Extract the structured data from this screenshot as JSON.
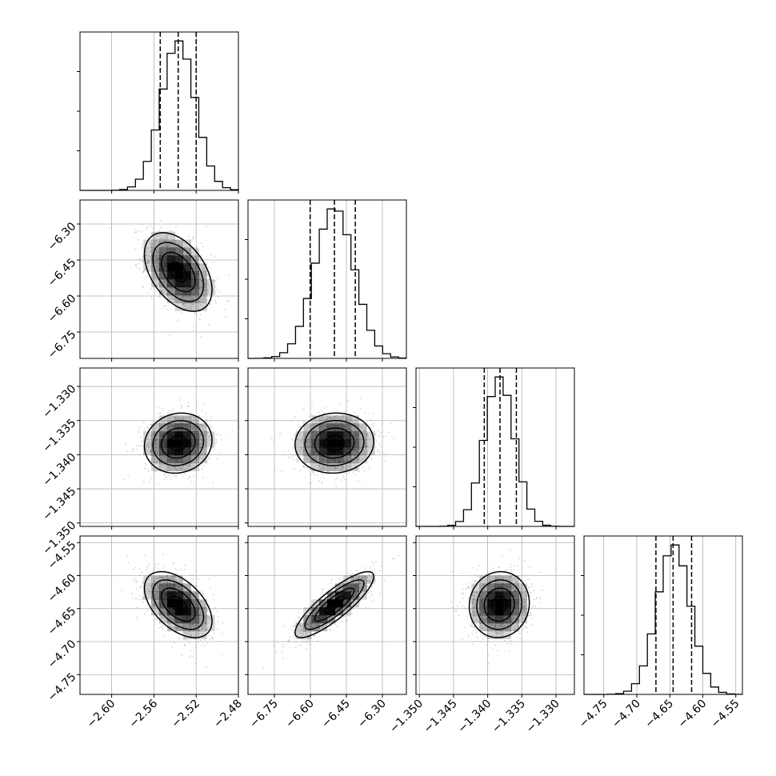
{
  "chart_data": {
    "type": "corner",
    "title": "",
    "colors": {
      "hist": "#000000",
      "contour": "#000000",
      "scatter": "#888888",
      "grid": "#b0b0b0",
      "density": "#000000"
    },
    "grid": true,
    "parameters": [
      {
        "label": "",
        "range": [
          -2.63,
          -2.48
        ],
        "mean": -2.537,
        "sd": 0.016,
        "quantiles": [
          -2.554,
          -2.537,
          -2.52
        ],
        "ticks": [
          -2.6,
          -2.56,
          -2.52,
          -2.48
        ],
        "tick_labels": [
          "−2.60",
          "−2.56",
          "−2.52",
          "−2.48"
        ]
      },
      {
        "label": "",
        "range": [
          -6.86,
          -6.2
        ],
        "mean": -6.5,
        "sd": 0.082,
        "quantiles": [
          -6.601,
          -6.5,
          -6.413
        ],
        "ticks": [
          -6.75,
          -6.6,
          -6.45,
          -6.3
        ],
        "tick_labels": [
          "−6.75",
          "−6.60",
          "−6.45",
          "−6.30"
        ]
      },
      {
        "label": "",
        "range": [
          -1.3505,
          -1.3273
        ],
        "mean": -1.3383,
        "sd": 0.0022,
        "quantiles": [
          -1.3405,
          -1.3382,
          -1.3358
        ],
        "ticks": [
          -1.35,
          -1.345,
          -1.34,
          -1.335,
          -1.33
        ],
        "tick_labels": [
          "−1.350",
          "−1.345",
          "−1.340",
          "−1.335",
          "−1.330"
        ]
      },
      {
        "label": "",
        "range": [
          -4.78,
          -4.54
        ],
        "mean": -4.644,
        "sd": 0.025,
        "quantiles": [
          -4.671,
          -4.645,
          -4.617
        ],
        "ticks": [
          -4.75,
          -4.7,
          -4.65,
          -4.6,
          -4.55
        ],
        "tick_labels": [
          "−4.75",
          "−4.70",
          "−4.65",
          "−4.60",
          "−4.55"
        ]
      }
    ],
    "correlations": [
      [
        1.0,
        -0.45,
        0.1,
        -0.5
      ],
      [
        -0.45,
        1.0,
        0.05,
        0.85
      ],
      [
        0.1,
        0.05,
        1.0,
        0.05
      ],
      [
        -0.5,
        0.85,
        0.05,
        1.0
      ]
    ],
    "contour_levels_sigma": [
      0.5,
      1.0,
      1.5,
      2.0
    ],
    "histogram_bins": 20
  }
}
